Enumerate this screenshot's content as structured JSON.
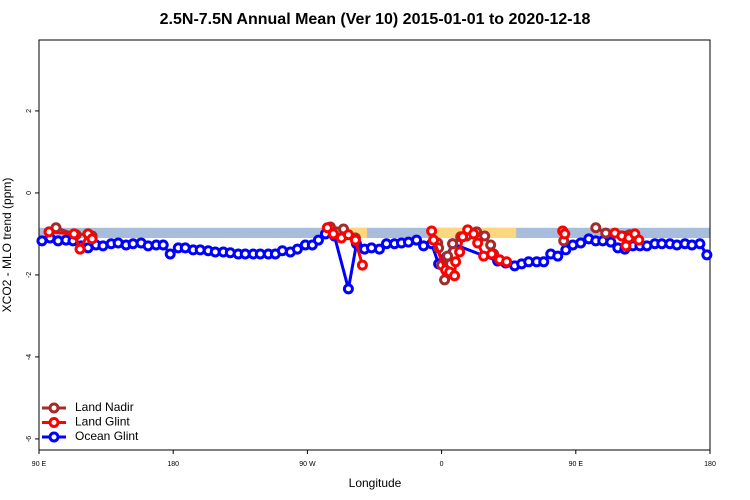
{
  "chart_data": {
    "type": "line",
    "title": "2.5N-7.5N Annual Mean (Ver 10)   2015-01-01 to 2020-12-18",
    "x_label": "Longitude",
    "y_label": "XCO2 - MLO trend (ppm)",
    "xlim": [
      90,
      540
    ],
    "ylim": [
      -6.27,
      3.73
    ],
    "xticks": [
      {
        "value": 90,
        "label": "90 E"
      },
      180,
      {
        "value": 270,
        "label": "90 W"
      },
      {
        "value": 360,
        "label": "0"
      },
      {
        "value": 450,
        "label": "90 E"
      },
      {
        "value": 540,
        "label": "180"
      }
    ],
    "yticks": [
      2,
      0,
      -2,
      -4,
      -6
    ],
    "legend": "bottom-left",
    "band": {
      "ylim": [
        -1.1,
        -0.85
      ],
      "color": "#a8bddb",
      "land_color": "#fcd77f",
      "land_x": [
        [
          280,
          310
        ],
        [
          356,
          410
        ]
      ]
    },
    "series": [
      {
        "name": "Land Nadir",
        "color": "#a52a2a",
        "x": [
          101.4,
          114.9,
          122.9,
          125.6,
          null,
          285.4,
          294.2,
          302.2,
          null,
          357.3,
          358.0,
          360.0,
          362.0,
          364.0,
          367.4,
          372.8,
          376.8,
          383.5,
          388.9,
          392.9,
          394.9,
          null,
          441.9,
          null,
          463.4,
          470.1,
          484.2,
          486.2
        ],
        "values": [
          -0.85,
          -1.02,
          -1.0,
          -1.05,
          null,
          -0.83,
          -0.88,
          -1.1,
          null,
          -1.22,
          -1.34,
          -1.76,
          -2.12,
          -1.54,
          -1.24,
          -1.07,
          -1.05,
          -0.95,
          -1.05,
          -1.27,
          -1.49,
          null,
          -1.17,
          null,
          -0.85,
          -0.98,
          -1.05,
          -1.02
        ]
      },
      {
        "name": "Land Glint",
        "color": "#ff0000",
        "x": [
          96.7,
          113.5,
          117.5,
          122.9,
          125.6,
          null,
          283.4,
          287.4,
          292.8,
          297.5,
          302.2,
          306.9,
          null,
          353.3,
          354.6,
          362.7,
          365.4,
          368.7,
          369.4,
          372.1,
          374.1,
          377.5,
          381.5,
          384.2,
          388.2,
          393.6,
          398.9,
          403.6,
          null,
          441.2,
          442.6,
          null,
          476.2,
          480.9,
          483.6,
          485.6,
          489.6,
          492.3
        ],
        "values": [
          -0.95,
          -1.0,
          -1.37,
          -1.0,
          -1.12,
          null,
          -0.85,
          -1.0,
          -1.1,
          -1.02,
          -1.15,
          -1.76,
          null,
          -0.93,
          -1.15,
          -1.88,
          -1.93,
          -2.02,
          -1.68,
          -1.44,
          -1.07,
          -0.9,
          -1.0,
          -1.22,
          -1.54,
          -1.49,
          -1.63,
          -1.68,
          null,
          -0.93,
          -1.0,
          null,
          -0.98,
          -1.05,
          -1.29,
          -1.1,
          -1.0,
          -1.15
        ]
      },
      {
        "name": "Ocean Glint",
        "color": "#0000ff",
        "x": [
          92.0,
          97.4,
          102.8,
          108.1,
          112.8,
          118.2,
          122.9,
          128.2,
          132.9,
          138.4,
          143.1,
          148.4,
          153.1,
          158.5,
          163.2,
          168.6,
          173.3,
          178.0,
          183.4,
          188.1,
          193.4,
          198.1,
          203.5,
          208.2,
          213.6,
          218.3,
          223.6,
          228.3,
          233.7,
          238.4,
          243.8,
          248.5,
          253.2,
          258.6,
          263.3,
          268.6,
          273.3,
          277.4,
          282.1,
          288.1,
          297.5,
          302.9,
          308.3,
          313.0,
          318.3,
          323.0,
          328.4,
          333.1,
          337.8,
          343.2,
          347.9,
          353.3,
          358.0,
          363.3,
          367.4,
          397.6,
          403.0,
          409.0,
          413.7,
          418.4,
          423.8,
          428.5,
          433.2,
          437.9,
          443.3,
          448.0,
          453.3,
          458.7,
          463.4,
          468.1,
          473.5,
          478.2,
          482.9,
          488.3,
          493.0,
          497.7,
          503.0,
          507.7,
          513.1,
          517.8,
          523.2,
          527.9,
          533.2,
          537.9
        ],
        "values": [
          -1.17,
          -1.1,
          -1.17,
          -1.15,
          -1.17,
          -1.29,
          -1.34,
          -1.27,
          -1.29,
          -1.24,
          -1.22,
          -1.27,
          -1.24,
          -1.22,
          -1.29,
          -1.27,
          -1.27,
          -1.49,
          -1.34,
          -1.34,
          -1.39,
          -1.39,
          -1.41,
          -1.44,
          -1.44,
          -1.46,
          -1.49,
          -1.49,
          -1.49,
          -1.49,
          -1.49,
          -1.49,
          -1.41,
          -1.44,
          -1.37,
          -1.27,
          -1.27,
          -1.15,
          -1.0,
          -1.05,
          -2.34,
          -1.24,
          -1.37,
          -1.34,
          -1.37,
          -1.24,
          -1.24,
          -1.22,
          -1.2,
          -1.15,
          -1.29,
          -1.24,
          -1.73,
          -1.56,
          -1.24,
          -1.66,
          -1.71,
          -1.78,
          -1.73,
          -1.68,
          -1.68,
          -1.68,
          -1.49,
          -1.54,
          -1.39,
          -1.27,
          -1.22,
          -1.12,
          -1.17,
          -1.17,
          -1.2,
          -1.34,
          -1.37,
          -1.29,
          -1.29,
          -1.29,
          -1.24,
          -1.24,
          -1.24,
          -1.27,
          -1.24,
          -1.27,
          -1.24,
          -1.51
        ]
      }
    ]
  }
}
